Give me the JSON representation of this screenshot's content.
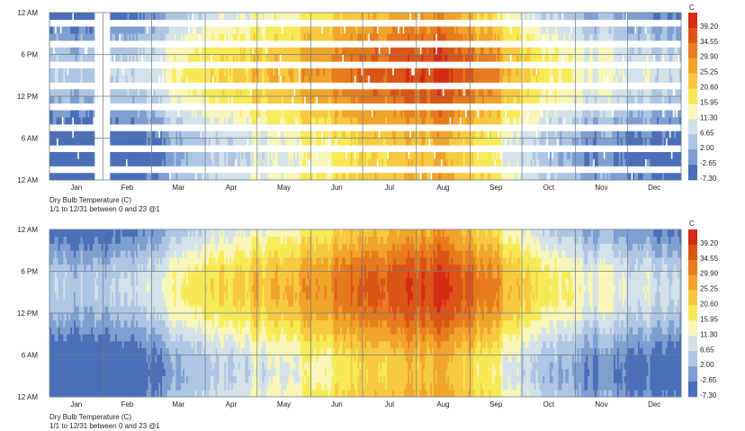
{
  "chart_data": [
    {
      "type": "heatmap",
      "variant": "sparse",
      "title": "Dry Bulb Temperature (C)",
      "subtitle": "1/1 to 12/31 between 0 and 23 @1",
      "y_tick_labels": [
        "12 AM",
        "6 PM",
        "12 PM",
        "6 AM",
        "12 AM"
      ],
      "x_tick_labels": [
        "Jan",
        "Feb",
        "Mar",
        "Apr",
        "May",
        "Jun",
        "Jul",
        "Aug",
        "Sep",
        "Oct",
        "Nov",
        "Dec"
      ],
      "x_range": [
        1,
        365
      ],
      "y_range": [
        0,
        23
      ],
      "legend_unit": "C",
      "legend_values": [
        "39.20",
        "34.55",
        "29.90",
        "25.25",
        "20.60",
        "15.95",
        "11.30",
        "6.65",
        "2.00",
        "-2.65",
        "-7.30"
      ],
      "value_range": [
        -7.3,
        41.5
      ]
    },
    {
      "type": "heatmap",
      "variant": "full",
      "title": "Dry Bulb Temperature (C)",
      "subtitle": "1/1 to 12/31 between 0 and 23 @1",
      "y_tick_labels": [
        "12 AM",
        "6 PM",
        "12 PM",
        "6 AM",
        "12 AM"
      ],
      "x_tick_labels": [
        "Jan",
        "Feb",
        "Mar",
        "Apr",
        "May",
        "Jun",
        "Jul",
        "Aug",
        "Sep",
        "Oct",
        "Nov",
        "Dec"
      ],
      "x_range": [
        1,
        365
      ],
      "y_range": [
        0,
        23
      ],
      "legend_unit": "C",
      "legend_values": [
        "39.20",
        "34.55",
        "29.90",
        "25.25",
        "20.60",
        "15.95",
        "11.30",
        "6.65",
        "2.00",
        "-2.65",
        "-7.30"
      ],
      "value_range": [
        -7.3,
        41.5
      ]
    }
  ],
  "colors": {
    "scale": [
      "#4a6fb8",
      "#7e9fd0",
      "#aec6e3",
      "#d2e2e8",
      "#f7f5b8",
      "#f7ea57",
      "#f6c93f",
      "#f0a42c",
      "#e67c1f",
      "#db5417",
      "#d42b14"
    ],
    "grid": "#6a7a88"
  },
  "seasonal_profile": {
    "month_mean_temp_c": [
      -3,
      -1,
      8,
      13,
      17,
      24,
      28,
      30,
      21,
      9,
      4,
      1
    ],
    "daily_swing_c": 7
  }
}
